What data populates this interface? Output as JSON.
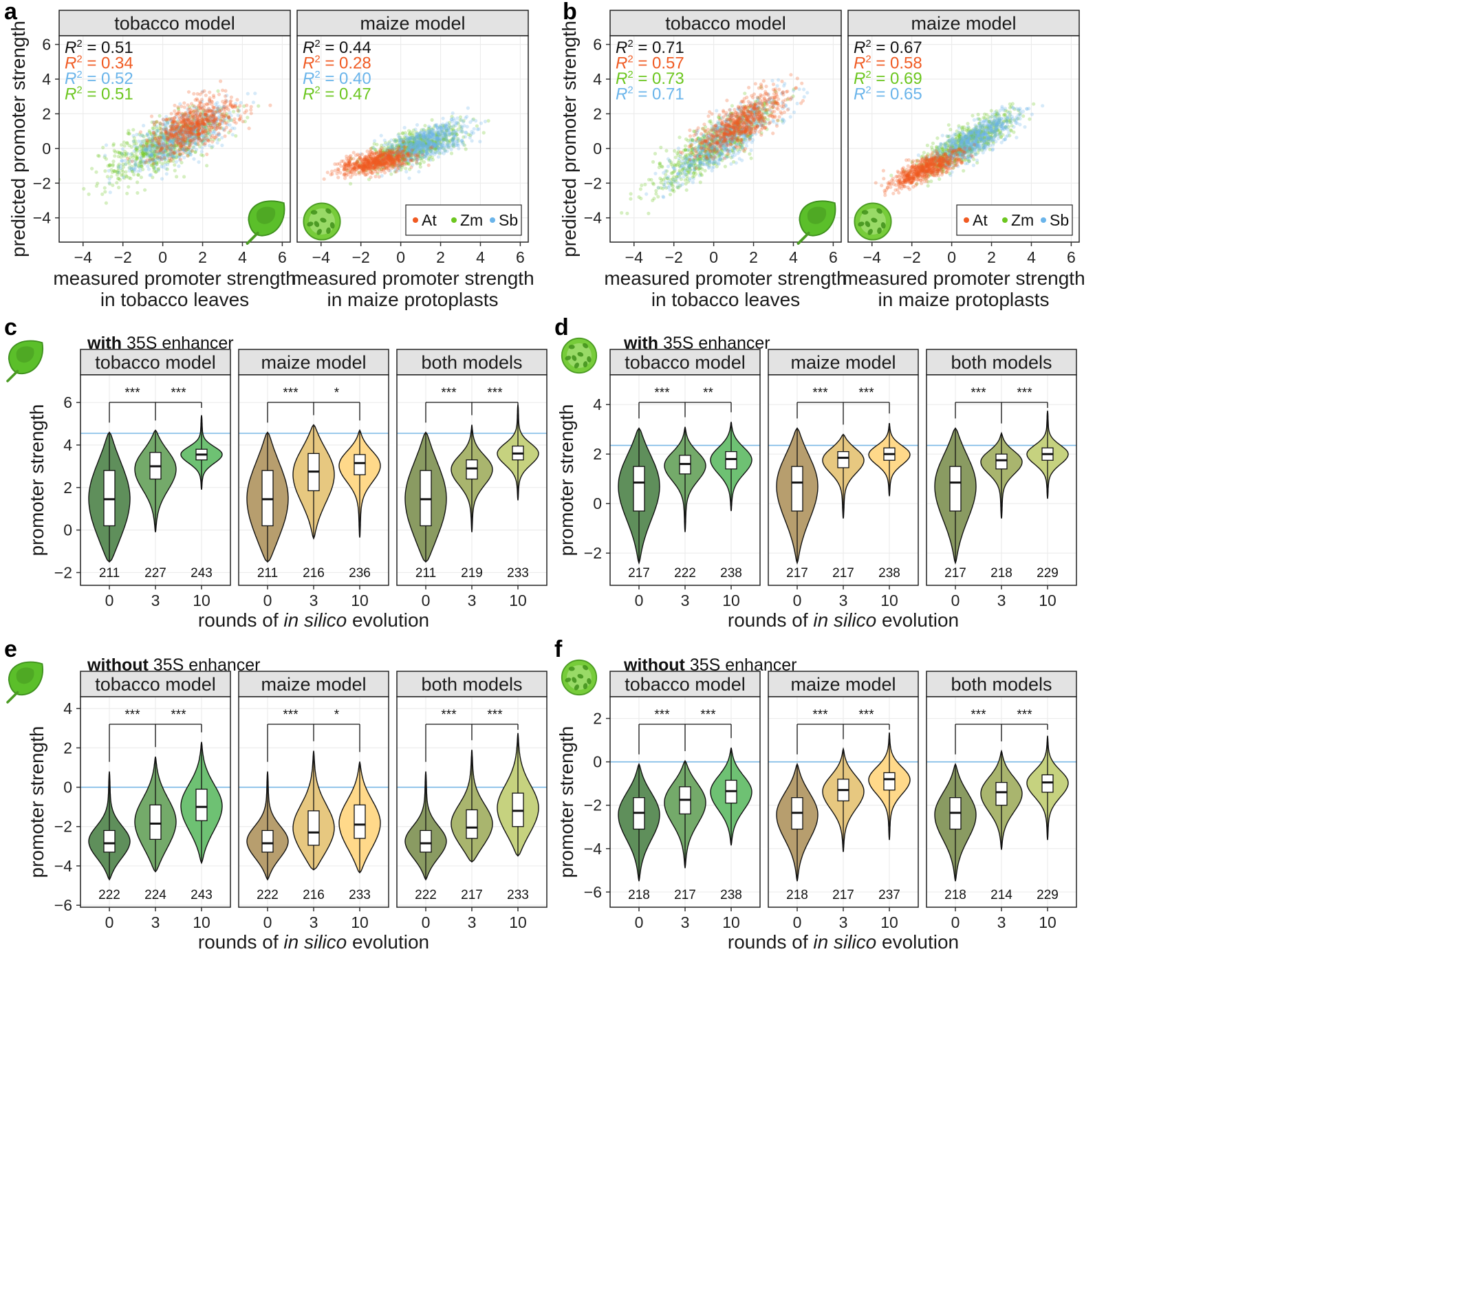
{
  "colors": {
    "At": "#f05a22",
    "Zm": "#6cc61f",
    "Sb": "#6ab4ea",
    "tobacco_violin": [
      "#5f8f5b",
      "#74aa6a",
      "#6ec173"
    ],
    "maize_violin": [
      "#b79e6e",
      "#e7c880",
      "#ffd98a"
    ],
    "both_violin": [
      "#8a9b62",
      "#a9b56e",
      "#c6d27f"
    ],
    "wt_line": "#7ab8e6",
    "strip_bg": "#e3e3e3",
    "grid": "#ececec"
  },
  "scatter_panels": [
    {
      "letter": "a",
      "icon_left": "tobacco-leaf-icon",
      "icon_right": "maize-protoplast-icon",
      "facets": [
        {
          "strip": "tobacco model",
          "xlabel": [
            "measured promoter strength",
            "in tobacco leaves"
          ],
          "r2": [
            {
              "label": "R",
              "sup": "2",
              "value": "= 0.51",
              "color": "#111111"
            },
            {
              "label": "R",
              "sup": "2",
              "value": "= 0.34",
              "color": "#f05a22"
            },
            {
              "label": "R",
              "sup": "2",
              "value": "= 0.52",
              "color": "#6ab4ea"
            },
            {
              "label": "R",
              "sup": "2",
              "value": "= 0.51",
              "color": "#6cc61f"
            }
          ]
        },
        {
          "strip": "maize model",
          "xlabel": [
            "measured promoter strength",
            "in maize protoplasts"
          ],
          "r2": [
            {
              "label": "R",
              "sup": "2",
              "value": "= 0.44",
              "color": "#111111"
            },
            {
              "label": "R",
              "sup": "2",
              "value": "= 0.28",
              "color": "#f05a22"
            },
            {
              "label": "R",
              "sup": "2",
              "value": "= 0.40",
              "color": "#6ab4ea"
            },
            {
              "label": "R",
              "sup": "2",
              "value": "= 0.47",
              "color": "#6cc61f"
            }
          ]
        }
      ]
    },
    {
      "letter": "b",
      "icon_left": "tobacco-leaf-icon",
      "icon_right": "maize-protoplast-icon",
      "facets": [
        {
          "strip": "tobacco model",
          "xlabel": [
            "measured promoter strength",
            "in tobacco leaves"
          ],
          "r2": [
            {
              "label": "R",
              "sup": "2",
              "value": "= 0.71",
              "color": "#111111"
            },
            {
              "label": "R",
              "sup": "2",
              "value": "= 0.57",
              "color": "#f05a22"
            },
            {
              "label": "R",
              "sup": "2",
              "value": "= 0.73",
              "color": "#6cc61f"
            },
            {
              "label": "R",
              "sup": "2",
              "value": "= 0.71",
              "color": "#6ab4ea"
            }
          ]
        },
        {
          "strip": "maize model",
          "xlabel": [
            "measured promoter strength",
            "in maize protoplasts"
          ],
          "r2": [
            {
              "label": "R",
              "sup": "2",
              "value": "= 0.67",
              "color": "#111111"
            },
            {
              "label": "R",
              "sup": "2",
              "value": "= 0.58",
              "color": "#f05a22"
            },
            {
              "label": "R",
              "sup": "2",
              "value": "= 0.69",
              "color": "#6cc61f"
            },
            {
              "label": "R",
              "sup": "2",
              "value": "= 0.65",
              "color": "#6ab4ea"
            }
          ]
        }
      ]
    }
  ],
  "violin_panels": [
    {
      "letter": "c",
      "title_bold": "with",
      "title_rest": " 35S enhancer",
      "icon": "tobacco-leaf-icon",
      "ylim": [
        -2.6,
        7.3
      ],
      "yticks": [
        -2,
        0,
        2,
        4,
        6
      ],
      "wt": 4.55,
      "facets": [
        {
          "strip": "tobacco model",
          "palette": "tobacco_violin",
          "n": [
            "211",
            "227",
            "243"
          ],
          "stars": [
            "***",
            "***"
          ],
          "q": [
            [
              -1.5,
              0.2,
              1.45,
              2.8,
              4.6
            ],
            [
              -0.1,
              2.4,
              3.0,
              3.65,
              4.7
            ],
            [
              1.9,
              3.3,
              3.55,
              3.8,
              5.4
            ]
          ]
        },
        {
          "strip": "maize model",
          "palette": "maize_violin",
          "n": [
            "211",
            "216",
            "236"
          ],
          "stars": [
            "***",
            "*"
          ],
          "q": [
            [
              -1.5,
              0.2,
              1.45,
              2.8,
              4.6
            ],
            [
              -0.4,
              1.85,
              2.75,
              3.6,
              4.95
            ],
            [
              -0.35,
              2.6,
              3.15,
              3.55,
              4.7
            ]
          ]
        },
        {
          "strip": "both models",
          "palette": "both_violin",
          "n": [
            "211",
            "219",
            "233"
          ],
          "stars": [
            "***",
            "***"
          ],
          "q": [
            [
              -1.5,
              0.2,
              1.45,
              2.8,
              4.6
            ],
            [
              -0.1,
              2.4,
              2.9,
              3.3,
              4.95
            ],
            [
              1.4,
              3.3,
              3.6,
              3.95,
              5.9
            ]
          ]
        }
      ]
    },
    {
      "letter": "d",
      "title_bold": "with",
      "title_rest": " 35S enhancer",
      "icon": "maize-protoplast-icon",
      "ylim": [
        -3.3,
        5.2
      ],
      "yticks": [
        -2,
        0,
        2,
        4
      ],
      "wt": 2.35,
      "facets": [
        {
          "strip": "tobacco model",
          "palette": "tobacco_violin",
          "n": [
            "217",
            "222",
            "238"
          ],
          "stars": [
            "***",
            "**"
          ],
          "q": [
            [
              -2.4,
              -0.3,
              0.85,
              1.5,
              3.05
            ],
            [
              -1.15,
              1.2,
              1.6,
              1.95,
              3.1
            ],
            [
              -0.3,
              1.4,
              1.8,
              2.1,
              3.3
            ]
          ]
        },
        {
          "strip": "maize model",
          "palette": "maize_violin",
          "n": [
            "217",
            "217",
            "238"
          ],
          "stars": [
            "***",
            "***"
          ],
          "q": [
            [
              -2.4,
              -0.3,
              0.85,
              1.5,
              3.05
            ],
            [
              -0.6,
              1.45,
              1.85,
              2.1,
              2.8
            ],
            [
              0.3,
              1.75,
              2.0,
              2.25,
              3.25
            ]
          ]
        },
        {
          "strip": "both models",
          "palette": "both_violin",
          "n": [
            "217",
            "218",
            "229"
          ],
          "stars": [
            "***",
            "***"
          ],
          "q": [
            [
              -2.4,
              -0.3,
              0.85,
              1.5,
              3.05
            ],
            [
              -0.6,
              1.4,
              1.75,
              2.0,
              2.85
            ],
            [
              0.2,
              1.75,
              2.0,
              2.25,
              3.75
            ]
          ]
        }
      ]
    },
    {
      "letter": "e",
      "title_bold": "without",
      "title_rest": " 35S enhancer",
      "icon": "tobacco-leaf-icon",
      "ylim": [
        -6.1,
        4.6
      ],
      "yticks": [
        -6,
        -4,
        -2,
        0,
        2,
        4
      ],
      "wt": 0.0,
      "facets": [
        {
          "strip": "tobacco model",
          "palette": "tobacco_violin",
          "n": [
            "222",
            "224",
            "243"
          ],
          "stars": [
            "***",
            "***"
          ],
          "q": [
            [
              -4.7,
              -3.3,
              -2.85,
              -2.2,
              0.8
            ],
            [
              -4.3,
              -2.65,
              -1.85,
              -0.9,
              1.55
            ],
            [
              -3.85,
              -1.7,
              -1.0,
              -0.1,
              2.3
            ]
          ]
        },
        {
          "strip": "maize model",
          "palette": "maize_violin",
          "n": [
            "222",
            "216",
            "233"
          ],
          "stars": [
            "***",
            "*"
          ],
          "q": [
            [
              -4.7,
              -3.3,
              -2.85,
              -2.2,
              0.8
            ],
            [
              -4.2,
              -2.95,
              -2.3,
              -1.2,
              1.85
            ],
            [
              -4.35,
              -2.6,
              -1.9,
              -0.9,
              1.3
            ]
          ]
        },
        {
          "strip": "both models",
          "palette": "both_violin",
          "n": [
            "222",
            "217",
            "233"
          ],
          "stars": [
            "***",
            "***"
          ],
          "q": [
            [
              -4.7,
              -3.3,
              -2.85,
              -2.2,
              0.8
            ],
            [
              -3.8,
              -2.6,
              -2.05,
              -1.15,
              1.9
            ],
            [
              -3.5,
              -2.0,
              -1.2,
              -0.3,
              2.75
            ]
          ]
        }
      ]
    },
    {
      "letter": "f",
      "title_bold": "without",
      "title_rest": " 35S enhancer",
      "icon": "maize-protoplast-icon",
      "ylim": [
        -6.7,
        3.0
      ],
      "yticks": [
        -6,
        -4,
        -2,
        0,
        2
      ],
      "wt": 0.0,
      "facets": [
        {
          "strip": "tobacco model",
          "palette": "tobacco_violin",
          "n": [
            "218",
            "217",
            "238"
          ],
          "stars": [
            "***",
            "***"
          ],
          "q": [
            [
              -5.5,
              -3.1,
              -2.35,
              -1.65,
              -0.1
            ],
            [
              -4.9,
              -2.4,
              -1.75,
              -1.15,
              0.05
            ],
            [
              -3.85,
              -1.9,
              -1.35,
              -0.85,
              0.65
            ]
          ]
        },
        {
          "strip": "maize model",
          "palette": "maize_violin",
          "n": [
            "218",
            "217",
            "237"
          ],
          "stars": [
            "***",
            "***"
          ],
          "q": [
            [
              -5.5,
              -3.1,
              -2.35,
              -1.65,
              -0.1
            ],
            [
              -4.15,
              -1.8,
              -1.3,
              -0.8,
              0.6
            ],
            [
              -3.6,
              -1.3,
              -0.8,
              -0.5,
              1.35
            ]
          ]
        },
        {
          "strip": "both models",
          "palette": "both_violin",
          "n": [
            "218",
            "214",
            "229"
          ],
          "stars": [
            "***",
            "***"
          ],
          "q": [
            [
              -5.5,
              -3.1,
              -2.35,
              -1.65,
              -0.1
            ],
            [
              -4.05,
              -2.0,
              -1.4,
              -0.95,
              0.5
            ],
            [
              -3.6,
              -1.4,
              -0.95,
              -0.6,
              1.2
            ]
          ]
        }
      ]
    }
  ],
  "violin_axes": {
    "ylabel": "promoter strength",
    "xticks": [
      "0",
      "3",
      "10"
    ],
    "xlabel_pre": "rounds of ",
    "xlabel_it": "in silico",
    "xlabel_post": " evolution"
  },
  "chart_data": [
    {
      "type": "scatter",
      "panel": "a",
      "facets": [
        "tobacco model",
        "maize model"
      ],
      "xlabel": "measured promoter strength in tobacco leaves / in maize protoplasts",
      "ylabel": "predicted promoter strength",
      "xlim": [
        -5.2,
        6.4
      ],
      "ylim": [
        -5.4,
        6.5
      ],
      "xticks": [
        -4,
        -2,
        0,
        2,
        4,
        6
      ],
      "yticks": [
        -4,
        -2,
        0,
        2,
        4,
        6
      ],
      "legend": {
        "placement": "bottom-right",
        "entries": [
          "At",
          "Zm",
          "Sb"
        ]
      },
      "series": [
        {
          "name": "At",
          "facet": "tobacco model",
          "cx": 1.5,
          "cy": 1.3,
          "sx": 1.1,
          "sy": 0.75,
          "r2": 0.34
        },
        {
          "name": "Zm",
          "facet": "tobacco model",
          "cx": 0.0,
          "cy": 0.2,
          "sx": 1.5,
          "sy": 1.0,
          "r2": 0.51
        },
        {
          "name": "Sb",
          "facet": "tobacco model",
          "cx": 0.8,
          "cy": 0.6,
          "sx": 1.3,
          "sy": 0.95,
          "r2": 0.52
        },
        {
          "name": "At",
          "facet": "maize model",
          "cx": -1.3,
          "cy": -0.8,
          "sx": 0.9,
          "sy": 0.35,
          "r2": 0.28
        },
        {
          "name": "Zm",
          "facet": "maize model",
          "cx": 0.7,
          "cy": 0.1,
          "sx": 1.15,
          "sy": 0.6,
          "r2": 0.47
        },
        {
          "name": "Sb",
          "facet": "maize model",
          "cx": 1.2,
          "cy": 0.3,
          "sx": 1.05,
          "sy": 0.6,
          "r2": 0.4
        }
      ],
      "r2_all": [
        0.51,
        0.44
      ]
    },
    {
      "type": "scatter",
      "panel": "b",
      "facets": [
        "tobacco model",
        "maize model"
      ],
      "xlabel": "measured promoter strength in tobacco leaves / in maize protoplasts",
      "ylabel": "predicted promoter strength",
      "xlim": [
        -5.2,
        6.4
      ],
      "ylim": [
        -5.4,
        6.5
      ],
      "xticks": [
        -4,
        -2,
        0,
        2,
        4,
        6
      ],
      "yticks": [
        -4,
        -2,
        0,
        2,
        4,
        6
      ],
      "legend": {
        "placement": "bottom-right",
        "entries": [
          "At",
          "Zm",
          "Sb"
        ]
      },
      "series": [
        {
          "name": "At",
          "facet": "tobacco model",
          "cx": 1.4,
          "cy": 1.5,
          "sx": 1.1,
          "sy": 0.9,
          "r2": 0.57
        },
        {
          "name": "Zm",
          "facet": "tobacco model",
          "cx": -0.1,
          "cy": 0.0,
          "sx": 1.5,
          "sy": 1.3,
          "r2": 0.73
        },
        {
          "name": "Sb",
          "facet": "tobacco model",
          "cx": 0.6,
          "cy": 0.6,
          "sx": 1.4,
          "sy": 1.2,
          "r2": 0.71
        },
        {
          "name": "At",
          "facet": "maize model",
          "cx": -1.3,
          "cy": -1.2,
          "sx": 0.85,
          "sy": 0.5,
          "r2": 0.58
        },
        {
          "name": "Zm",
          "facet": "maize model",
          "cx": 0.7,
          "cy": 0.3,
          "sx": 1.15,
          "sy": 0.85,
          "r2": 0.69
        },
        {
          "name": "Sb",
          "facet": "maize model",
          "cx": 1.1,
          "cy": 0.5,
          "sx": 1.05,
          "sy": 0.8,
          "r2": 0.65
        }
      ],
      "r2_all": [
        0.71,
        0.67
      ]
    },
    {
      "type": "violin",
      "panels": [
        "c",
        "d",
        "e",
        "f"
      ],
      "ylabel": "promoter strength",
      "xlabel": "rounds of in silico evolution",
      "categories": [
        "0",
        "3",
        "10"
      ],
      "note": "quartiles per violin are listed under violin_panels[].facets[].q as [min, q1, median, q3, max]"
    }
  ]
}
